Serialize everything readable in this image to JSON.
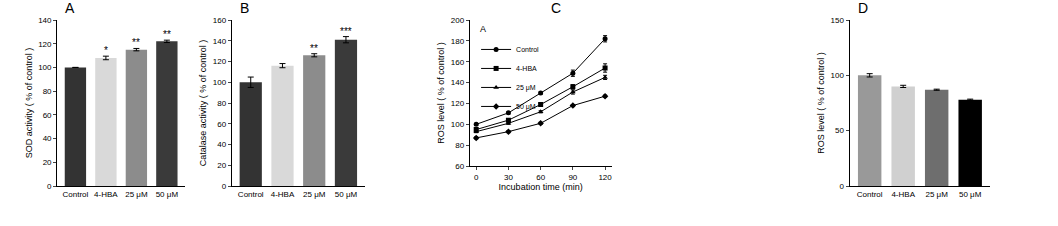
{
  "chart_data": [
    {
      "type": "bar",
      "title": "A",
      "y_label": "SOD activity ( % of control )",
      "categories": [
        "Control",
        "4-HBA",
        "25 μM",
        "50 μM"
      ],
      "values": [
        100,
        108,
        115,
        122
      ],
      "errors": [
        0,
        1.5,
        1,
        1
      ],
      "annotations": [
        null,
        "*",
        "**",
        "**"
      ],
      "colors": [
        "#333333",
        "#d9d9d9",
        "#8c8c8c",
        "#3a3a3a"
      ],
      "ylim": [
        0,
        140
      ],
      "yticks": [
        0,
        20,
        40,
        60,
        80,
        100,
        120,
        140
      ],
      "grid": false
    },
    {
      "type": "bar",
      "title": "B",
      "y_label": "Catalase activity ( % of control )",
      "categories": [
        "Control",
        "4-HBA",
        "25 μM",
        "50 μM"
      ],
      "values": [
        100,
        116,
        126,
        141
      ],
      "errors": [
        5,
        2,
        1.5,
        3
      ],
      "annotations": [
        null,
        null,
        "**",
        "***"
      ],
      "colors": [
        "#333333",
        "#d9d9d9",
        "#8c8c8c",
        "#3a3a3a"
      ],
      "ylim": [
        0,
        160
      ],
      "yticks": [
        0,
        20,
        40,
        60,
        80,
        100,
        120,
        140,
        160
      ],
      "grid": false
    },
    {
      "type": "line",
      "title": "C",
      "annotations": [
        "A"
      ],
      "x_label": "Incubation time (min)",
      "y_label": "ROS level ( % of control )",
      "x": [
        0,
        30,
        60,
        90,
        120
      ],
      "series": [
        {
          "name": "Control",
          "color": "#000000",
          "marker": "circle",
          "values": [
            100,
            111,
            130,
            149,
            182
          ],
          "errors": [
            1,
            1,
            1,
            3,
            3
          ]
        },
        {
          "name": "4-HBA",
          "color": "#000000",
          "marker": "square",
          "values": [
            95,
            104,
            119,
            136,
            154
          ],
          "errors": [
            1,
            1,
            1,
            2,
            4
          ]
        },
        {
          "name": "25 μM",
          "color": "#000000",
          "marker": "triangle",
          "values": [
            93,
            101,
            112,
            131,
            145
          ],
          "errors": [
            1,
            1,
            1,
            2,
            2
          ]
        },
        {
          "name": "50 μM",
          "color": "#000000",
          "marker": "diamond",
          "values": [
            87,
            93,
            101,
            118,
            127
          ],
          "errors": [
            1,
            1,
            1,
            1,
            1
          ]
        }
      ],
      "xlim": [
        -6,
        126
      ],
      "xticks": [
        0,
        30,
        60,
        90,
        120
      ],
      "ylim": [
        60,
        200
      ],
      "yticks": [
        60,
        80,
        100,
        120,
        140,
        160,
        180,
        200
      ],
      "legend": "upper left",
      "grid": false
    },
    {
      "type": "bar",
      "title": "D",
      "y_label": "ROS level ( % of control )",
      "categories": [
        "Control",
        "4-HBA",
        "25 μM",
        "50 μM"
      ],
      "values": [
        100,
        90,
        87,
        78
      ],
      "errors": [
        1.5,
        1,
        0.5,
        0.5
      ],
      "colors": [
        "#999999",
        "#d0d0d0",
        "#6e6e6e",
        "#000000"
      ],
      "ylim": [
        0,
        150
      ],
      "yticks": [
        0,
        50,
        100,
        150
      ],
      "grid": false
    }
  ]
}
